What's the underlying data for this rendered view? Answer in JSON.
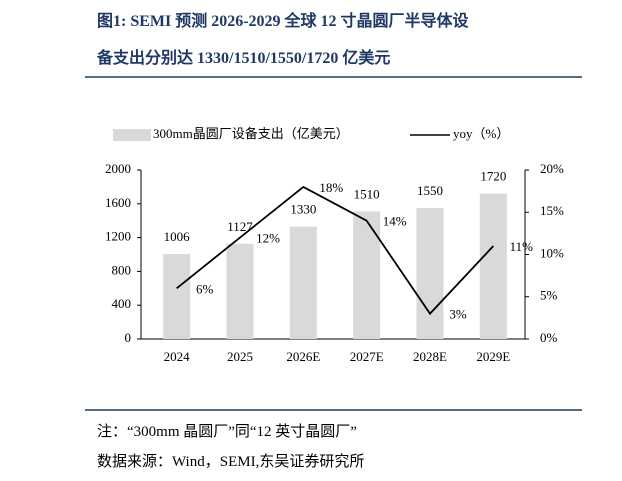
{
  "header": {
    "title_lines": [
      "图1:  SEMI 预测 2026-2029 全球 12 寸晶圆厂半导体设",
      "备支出分别达 1330/1510/1550/1720 亿美元"
    ]
  },
  "chart_data": {
    "type": "bar-line",
    "categories": [
      "2024",
      "2025",
      "2026E",
      "2027E",
      "2028E",
      "2029E"
    ],
    "series": [
      {
        "name": "300mm晶圆厂设备支出（亿美元）",
        "type": "bar",
        "color": "#d9d9d9",
        "values": [
          1006,
          1127,
          1330,
          1510,
          1550,
          1720
        ]
      },
      {
        "name": "yoy（%）",
        "type": "line",
        "axis": "y2",
        "color": "#000000",
        "values": [
          6,
          12,
          18,
          14,
          3,
          11
        ],
        "value_labels": [
          "6%",
          "12%",
          "18%",
          "14%",
          "3%",
          "11%"
        ]
      }
    ],
    "ylim": [
      0,
      2000
    ],
    "yticks": [
      0,
      400,
      800,
      1200,
      1600,
      2000
    ],
    "y2lim": [
      0,
      20
    ],
    "y2ticks": [
      {
        "value": 0,
        "label": "0%"
      },
      {
        "value": 5,
        "label": "5%"
      },
      {
        "value": 10,
        "label": "10%"
      },
      {
        "value": 15,
        "label": "15%"
      },
      {
        "value": 20,
        "label": "20%"
      }
    ],
    "legend": "top"
  },
  "notes": [
    "注：“300mm 晶圆厂”同“12 英寸晶圆厂”",
    "数据来源：Wind，SEMI,东吴证券研究所"
  ]
}
